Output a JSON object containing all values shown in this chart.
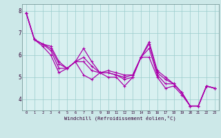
{
  "x": [
    0,
    1,
    2,
    3,
    4,
    5,
    6,
    7,
    8,
    9,
    10,
    11,
    12,
    13,
    14,
    15,
    16,
    17,
    18,
    19,
    20,
    21,
    22,
    23
  ],
  "line_max": [
    7.9,
    6.7,
    6.5,
    6.4,
    5.7,
    5.4,
    5.7,
    6.3,
    5.7,
    5.2,
    5.3,
    5.2,
    5.1,
    5.1,
    5.9,
    6.6,
    5.3,
    5.0,
    4.7,
    4.3,
    3.7,
    3.7,
    4.6,
    4.5
  ],
  "line_min": [
    7.9,
    6.7,
    6.4,
    6.0,
    5.2,
    5.4,
    5.7,
    5.1,
    4.9,
    5.2,
    5.0,
    5.0,
    4.6,
    5.0,
    5.9,
    5.9,
    5.0,
    4.5,
    4.6,
    4.2,
    3.7,
    3.7,
    4.6,
    4.5
  ],
  "line_avg1": [
    7.9,
    6.7,
    6.5,
    6.2,
    5.4,
    5.4,
    5.7,
    5.7,
    5.3,
    5.2,
    5.2,
    5.1,
    4.9,
    5.0,
    5.9,
    6.3,
    5.1,
    4.7,
    4.7,
    4.3,
    3.7,
    3.7,
    4.6,
    4.5
  ],
  "line_avg2": [
    7.9,
    6.7,
    6.5,
    6.3,
    5.6,
    5.4,
    5.7,
    5.9,
    5.5,
    5.2,
    5.2,
    5.1,
    5.0,
    5.1,
    5.9,
    6.5,
    5.2,
    4.9,
    4.7,
    4.3,
    3.7,
    3.7,
    4.6,
    4.5
  ],
  "ylim": [
    3.5,
    8.3
  ],
  "yticks": [
    4,
    5,
    6,
    7,
    8
  ],
  "xtick_labels": [
    "0",
    "1",
    "2",
    "3",
    "4",
    "5",
    "6",
    "7",
    "8",
    "9",
    "10",
    "11",
    "12",
    "13",
    "14",
    "15",
    "16",
    "17",
    "18",
    "19",
    "20",
    "21",
    "22",
    "23"
  ],
  "xlabel": "Windchill (Refroidissement éolien,°C)",
  "line_color": "#aa00aa",
  "bg_color": "#cce8e8",
  "plot_bg": "#d8f0f0",
  "grid_color": "#99cccc",
  "spine_color": "#668888",
  "tick_color": "#330033",
  "label_color": "#330033"
}
